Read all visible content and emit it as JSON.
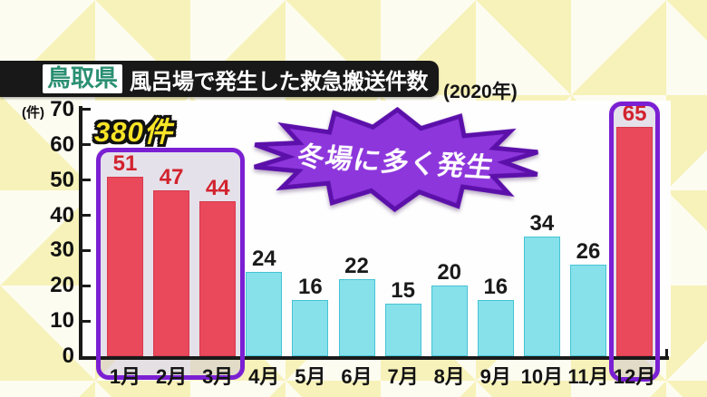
{
  "header": {
    "region_badge": "鳥取県",
    "title": "風呂場で発生した救急搬送件数",
    "year_note": "(2020年)"
  },
  "annotations": {
    "total_label": "380件",
    "burst_label": "冬場に多く発生",
    "unit_label": "(件)"
  },
  "chart_data": {
    "type": "bar",
    "title": "鳥取県 風呂場で発生した救急搬送件数 (2020年)",
    "categories": [
      "1月",
      "2月",
      "3月",
      "4月",
      "5月",
      "6月",
      "7月",
      "8月",
      "9月",
      "10月",
      "11月",
      "12月"
    ],
    "values": [
      51,
      47,
      44,
      24,
      16,
      22,
      15,
      20,
      16,
      34,
      26,
      65
    ],
    "ylabel": "(件)",
    "xlabel": "",
    "ylim": [
      0,
      70
    ],
    "yticks": [
      0,
      10,
      20,
      30,
      40,
      50,
      60,
      70
    ],
    "grid": false,
    "legend": "none",
    "highlighted_categories": [
      "1月",
      "2月",
      "3月",
      "12月"
    ],
    "highlight_note": "winter months boxed in purple, total 380件, annotation: 冬場に多く発生"
  },
  "colors": {
    "bar_normal": "#87e1eb",
    "bar_normal_border": "#46c3d4",
    "bar_highlight": "#e9495b",
    "value_label_normal": "#1a1a1a",
    "value_label_highlight": "#d2232e",
    "highlight_box_purple": "#7b1fd3",
    "burst_fill": "#8d36dc",
    "burst_stroke": "#5c10aa",
    "total_label_yellow": "#f8e427",
    "badge_green": "#2a8f72",
    "title_bar_black": "#181818",
    "axis_black": "#1a1a1a"
  }
}
